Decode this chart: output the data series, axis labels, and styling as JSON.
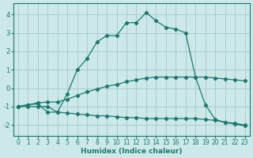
{
  "xlabel": "Humidex (Indice chaleur)",
  "ylabel": "",
  "background_color": "#cce8e8",
  "grid_color": "#aacccc",
  "line_color": "#1a7a6e",
  "xlim": [
    -0.5,
    23.5
  ],
  "ylim": [
    -2.6,
    4.6
  ],
  "yticks": [
    -2,
    -1,
    0,
    1,
    2,
    3,
    4
  ],
  "xticks": [
    0,
    1,
    2,
    3,
    4,
    5,
    6,
    7,
    8,
    9,
    10,
    11,
    12,
    13,
    14,
    15,
    16,
    17,
    18,
    19,
    20,
    21,
    22,
    23
  ],
  "series1_x": [
    0,
    1,
    2,
    3,
    4,
    5,
    6,
    7,
    8,
    9,
    10,
    11,
    12,
    13,
    14,
    15,
    16,
    17,
    18,
    19,
    20,
    21,
    22,
    23
  ],
  "series1_y": [
    -1.0,
    -1.0,
    -1.0,
    -1.0,
    -1.3,
    -1.35,
    -1.4,
    -1.45,
    -1.5,
    -1.5,
    -1.55,
    -1.6,
    -1.6,
    -1.65,
    -1.65,
    -1.65,
    -1.65,
    -1.65,
    -1.65,
    -1.7,
    -1.75,
    -1.85,
    -1.95,
    -2.05
  ],
  "series2_x": [
    0,
    1,
    2,
    3,
    4,
    5,
    6,
    7,
    8,
    9,
    10,
    11,
    12,
    13,
    14,
    15,
    16,
    17,
    18,
    19,
    20,
    21,
    22,
    23
  ],
  "series2_y": [
    -1.0,
    -0.9,
    -0.85,
    -1.3,
    -1.3,
    -0.3,
    1.0,
    1.6,
    2.5,
    2.85,
    2.85,
    3.55,
    3.55,
    4.1,
    3.65,
    3.3,
    3.2,
    3.0,
    0.6,
    -0.9,
    -1.7,
    -1.85,
    -1.9,
    -2.0
  ],
  "series3_x": [
    0,
    1,
    2,
    3,
    4,
    5,
    6,
    7,
    8,
    9,
    10,
    11,
    12,
    13,
    14,
    15,
    16,
    17,
    18,
    19,
    20,
    21,
    22,
    23
  ],
  "series3_y": [
    -1.0,
    -0.9,
    -0.8,
    -0.75,
    -0.75,
    -0.6,
    -0.4,
    -0.2,
    -0.05,
    0.1,
    0.2,
    0.35,
    0.45,
    0.55,
    0.6,
    0.6,
    0.6,
    0.6,
    0.6,
    0.6,
    0.55,
    0.5,
    0.45,
    0.4
  ]
}
